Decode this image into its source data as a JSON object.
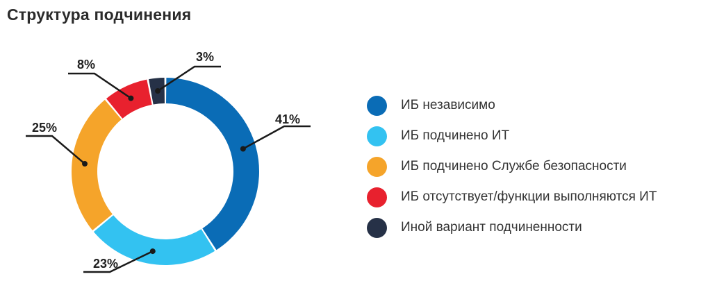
{
  "title": "Структура подчинения",
  "chart_data": {
    "type": "pie",
    "style": "donut",
    "title": "Структура подчинения",
    "categories": [
      "ИБ независимо",
      "ИБ подчинено ИТ",
      "ИБ подчинено Службе безопасности",
      "ИБ отсутствует/функции выполняются ИТ",
      "Иной вариант подчиненности"
    ],
    "values": [
      41,
      23,
      25,
      8,
      3
    ],
    "labels": [
      "41%",
      "23%",
      "25%",
      "8%",
      "3%"
    ],
    "colors": [
      "#0a6cb6",
      "#33c2f1",
      "#f5a42a",
      "#e8212e",
      "#263147"
    ],
    "legend_position": "right"
  }
}
